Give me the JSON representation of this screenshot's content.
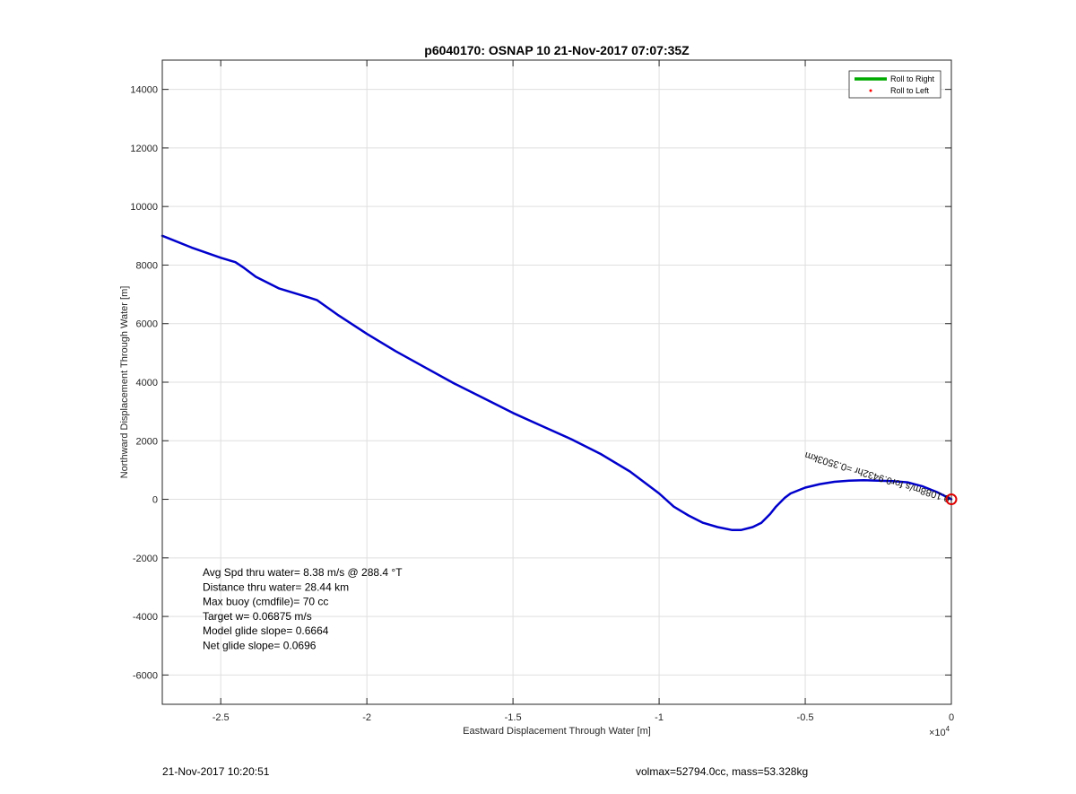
{
  "chart_data": {
    "type": "line",
    "title": "p6040170: OSNAP 10 21-Nov-2017 07:07:35Z",
    "xlabel": "Eastward Displacement Through Water [m]",
    "ylabel": "Northward Displacement Through Water [m]",
    "x_multiplier_label": "×10",
    "x_multiplier_exp": "4",
    "xlim": [
      -2.7,
      0
    ],
    "ylim": [
      -7000,
      15000
    ],
    "x_ticks": [
      -2.5,
      -2,
      -1.5,
      -1,
      -0.5,
      0
    ],
    "x_tick_labels": [
      "-2.5",
      "-2",
      "-1.5",
      "-1",
      "-0.5",
      "0"
    ],
    "y_ticks": [
      -6000,
      -4000,
      -2000,
      0,
      2000,
      4000,
      6000,
      8000,
      10000,
      12000,
      14000
    ],
    "y_tick_labels": [
      "-6000",
      "-4000",
      "-2000",
      "0",
      "2000",
      "4000",
      "6000",
      "8000",
      "10000",
      "12000",
      "14000"
    ],
    "grid": true,
    "legend_position": "top-right",
    "series": [
      {
        "name": "Roll to Right",
        "color": "#00aa00",
        "style": "line",
        "x": [],
        "y": []
      },
      {
        "name": "Roll to Left",
        "color": "#ff0000",
        "style": "marker",
        "x": [],
        "y": []
      },
      {
        "name": "",
        "color": "#0000cc",
        "style": "line",
        "x": [
          -2.7,
          -2.6,
          -2.5,
          -2.45,
          -2.42,
          -2.38,
          -2.3,
          -2.2,
          -2.17,
          -2.1,
          -2.0,
          -1.9,
          -1.8,
          -1.7,
          -1.6,
          -1.5,
          -1.4,
          -1.3,
          -1.2,
          -1.1,
          -1.0,
          -0.95,
          -0.9,
          -0.85,
          -0.8,
          -0.75,
          -0.72,
          -0.68,
          -0.65,
          -0.62,
          -0.6,
          -0.57,
          -0.55,
          -0.5,
          -0.45,
          -0.4,
          -0.35,
          -0.3,
          -0.25,
          -0.2,
          -0.15,
          -0.1,
          -0.05,
          -0.02,
          0
        ],
        "y": [
          9000,
          8600,
          8250,
          8100,
          7900,
          7600,
          7200,
          6900,
          6800,
          6300,
          5650,
          5050,
          4500,
          3950,
          3450,
          2950,
          2500,
          2050,
          1550,
          950,
          200,
          -250,
          -550,
          -800,
          -950,
          -1050,
          -1050,
          -950,
          -800,
          -500,
          -250,
          50,
          200,
          400,
          520,
          600,
          640,
          650,
          640,
          620,
          580,
          450,
          250,
          100,
          0
        ]
      }
    ],
    "annotations": {
      "stats_lines": [
        "Avg Spd thru water=  8.38 m/s @ 288.4 °T",
        "Distance thru water= 28.44 km",
        "Max buoy (cmdfile)= 70 cc",
        "Target w= 0.06875 m/s",
        "Model glide slope= 0.6664",
        "Net glide slope= 0.0696"
      ],
      "rotated_text": "ʍɯ...  0.3503km  0.9432hr for  0.1088 m/s",
      "rotated_text_main": "0.1088m/s for0.9432hr =0.3503km",
      "circle_marker": {
        "x": 0,
        "y": 0,
        "color": "#dd0000"
      }
    }
  },
  "footer": {
    "left": "21-Nov-2017 10:20:51",
    "right": "volmax=52794.0cc, mass=53.328kg"
  }
}
